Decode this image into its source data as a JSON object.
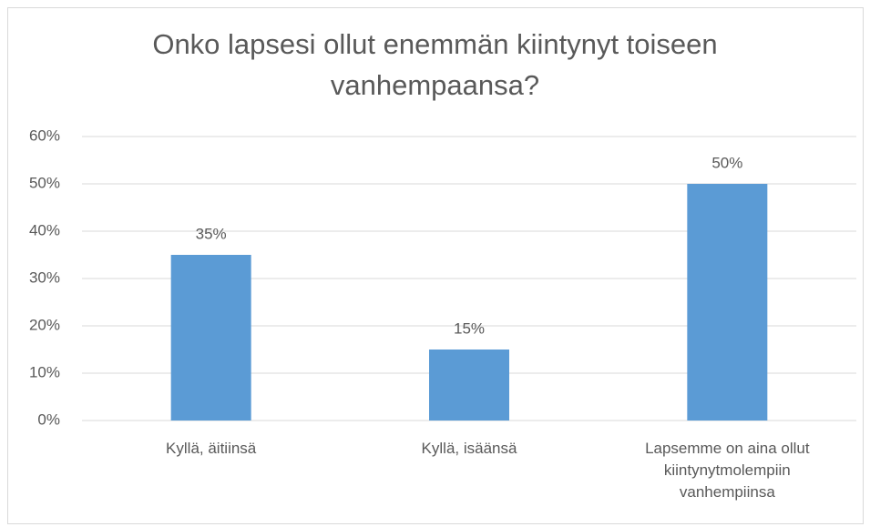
{
  "chart_data": {
    "type": "bar",
    "title": "Onko lapsesi ollut enemmän kiintynyt toiseen vanhempaansa?",
    "categories": [
      "Kyllä, äitiinsä",
      "Kyllä, isäänsä",
      "Lapsemme on aina ollut kiintynytmolempiin vanhempiinsa"
    ],
    "values": [
      35,
      15,
      50
    ],
    "value_labels": [
      "35%",
      "15%",
      "50%"
    ],
    "color": "#5b9bd5",
    "ylim": [
      0,
      60
    ],
    "yticks": [
      {
        "value": 0,
        "label": "0%"
      },
      {
        "value": 10,
        "label": "10%"
      },
      {
        "value": 20,
        "label": "20%"
      },
      {
        "value": 30,
        "label": "30%"
      },
      {
        "value": 40,
        "label": "40%"
      },
      {
        "value": 50,
        "label": "50%"
      },
      {
        "value": 60,
        "label": "60%"
      }
    ],
    "grid": true
  }
}
